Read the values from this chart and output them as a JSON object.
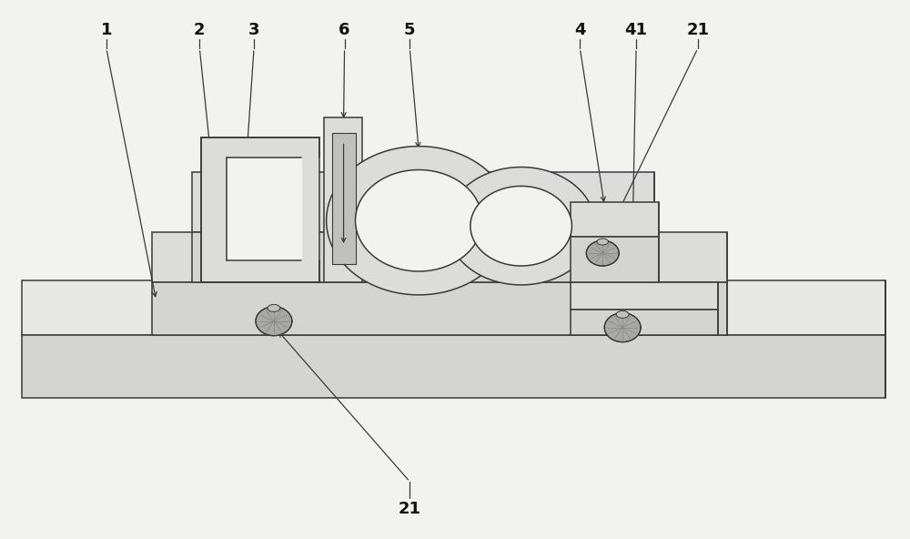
{
  "bg_color": "#f2f2ee",
  "line_color": "#3a3a3a",
  "lw": 1.1,
  "fill_top": "#e8e8e4",
  "fill_front": "#d4d4d0",
  "fill_right": "#c8c8c4",
  "fill_mid": "#dcdcda",
  "fill_dark": "#c0c0bc"
}
